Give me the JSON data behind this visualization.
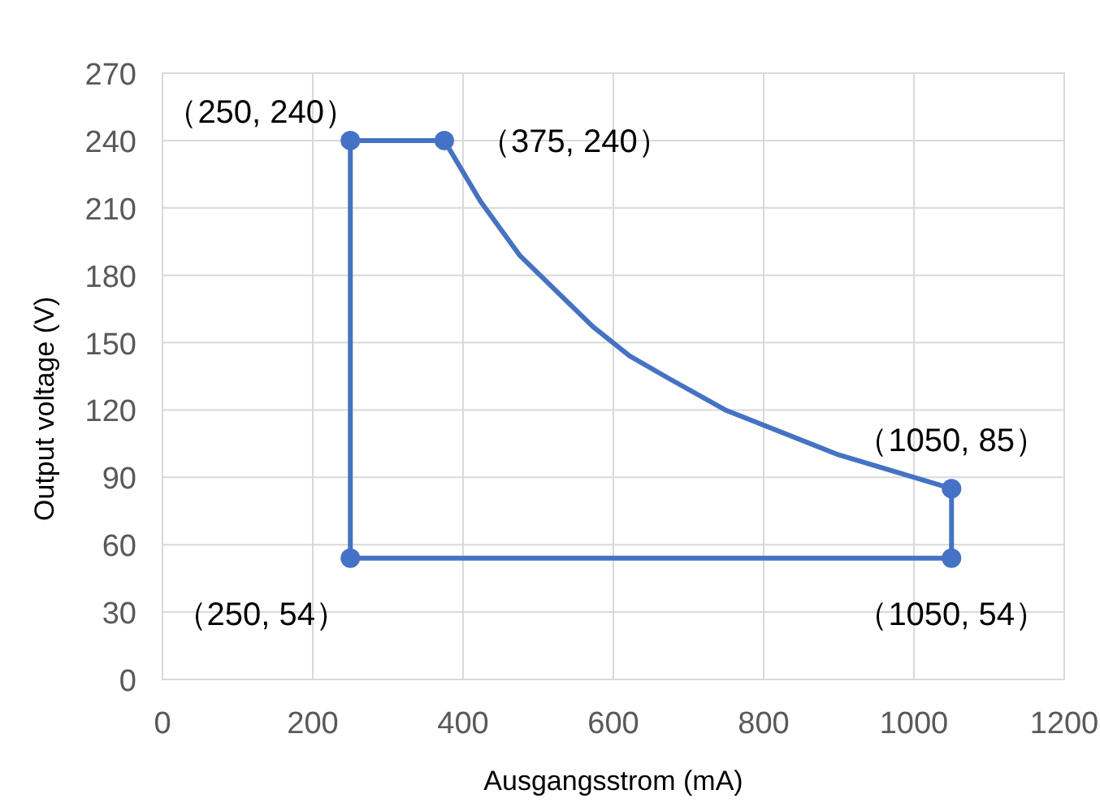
{
  "chart_data": {
    "type": "line",
    "xlabel": "Ausgangsstrom (mA)",
    "ylabel": "Output voltage (V)",
    "xlim": [
      0,
      1200
    ],
    "ylim": [
      0,
      270
    ],
    "xticks": [
      0,
      200,
      400,
      600,
      800,
      1000,
      1200
    ],
    "yticks": [
      0,
      30,
      60,
      90,
      120,
      150,
      180,
      210,
      240,
      270
    ],
    "grid": true,
    "line_style": "solid",
    "series": [
      {
        "color": "#4472c4",
        "marker": "none",
        "x": [
          250,
          250
        ],
        "values": [
          54,
          240
        ]
      },
      {
        "color": "#4472c4",
        "marker": "none",
        "x": [
          250,
          375,
          423,
          475,
          573,
          622,
          674,
          749,
          900,
          1050
        ],
        "values": [
          240,
          240,
          213,
          189,
          157,
          144,
          134,
          120,
          100,
          85
        ]
      },
      {
        "color": "#4472c4",
        "marker": "none",
        "x": [
          1050,
          1050
        ],
        "values": [
          85,
          54
        ]
      },
      {
        "color": "#4472c4",
        "marker": "none",
        "x": [
          250,
          1050
        ],
        "values": [
          54,
          54
        ]
      },
      {
        "type": "scatter",
        "color": "#4472c4",
        "marker": "circle",
        "x": [
          250,
          375,
          1050,
          1050,
          250
        ],
        "values": [
          240,
          240,
          85,
          54,
          54
        ]
      }
    ],
    "annotations": [
      {
        "text": "（250, 240）",
        "x": 250,
        "y": 240
      },
      {
        "text": "（375, 240）",
        "x": 375,
        "y": 240
      },
      {
        "text": "（1050, 85）",
        "x": 1050,
        "y": 85
      },
      {
        "text": "（250, 54）",
        "x": 250,
        "y": 54
      },
      {
        "text": "（1050, 54）",
        "x": 1050,
        "y": 54
      }
    ]
  }
}
